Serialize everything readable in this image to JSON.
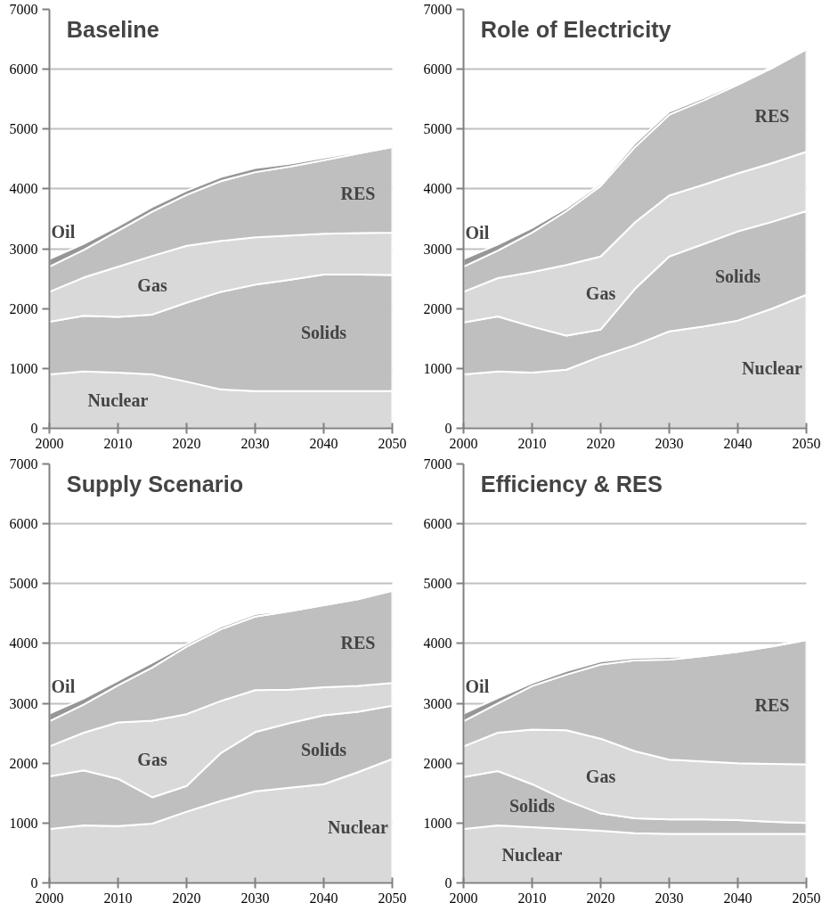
{
  "chart_data": [
    {
      "type": "area",
      "stacked": true,
      "title": "Baseline",
      "x": [
        2000,
        2005,
        2010,
        2015,
        2020,
        2025,
        2030,
        2035,
        2040,
        2045,
        2050
      ],
      "xlim": [
        2000,
        2050
      ],
      "xticks": [
        2000,
        2010,
        2020,
        2030,
        2040,
        2050
      ],
      "ylim": [
        0,
        7000
      ],
      "yticks": [
        0,
        1000,
        2000,
        3000,
        4000,
        5000,
        6000,
        7000
      ],
      "grid": "y",
      "series": [
        {
          "name": "Nuclear",
          "color": "#d9d9d9",
          "values": [
            900,
            950,
            930,
            900,
            780,
            650,
            620,
            620,
            620,
            620,
            620
          ]
        },
        {
          "name": "Solids",
          "color": "#bfbfbf",
          "values": [
            880,
            930,
            930,
            1000,
            1320,
            1630,
            1780,
            1860,
            1950,
            1950,
            1940
          ]
        },
        {
          "name": "Gas",
          "color": "#d9d9d9",
          "values": [
            500,
            640,
            840,
            980,
            950,
            850,
            790,
            740,
            680,
            690,
            710
          ]
        },
        {
          "name": "RES",
          "color": "#bfbfbf",
          "values": [
            420,
            460,
            600,
            740,
            850,
            1000,
            1090,
            1150,
            1230,
            1330,
            1430
          ]
        },
        {
          "name": "Oil",
          "color": "#969696",
          "values": [
            130,
            100,
            80,
            80,
            70,
            70,
            70,
            50,
            40,
            30,
            30
          ]
        }
      ]
    },
    {
      "type": "area",
      "stacked": true,
      "title": "Role of Electricity",
      "x": [
        2000,
        2005,
        2010,
        2015,
        2020,
        2025,
        2030,
        2035,
        2040,
        2045,
        2050
      ],
      "xlim": [
        2000,
        2050
      ],
      "xticks": [
        2000,
        2010,
        2020,
        2030,
        2040,
        2050
      ],
      "ylim": [
        0,
        7000
      ],
      "yticks": [
        0,
        1000,
        2000,
        3000,
        4000,
        5000,
        6000,
        7000
      ],
      "grid": "y",
      "series": [
        {
          "name": "Nuclear",
          "color": "#d9d9d9",
          "values": [
            900,
            950,
            930,
            980,
            1200,
            1390,
            1620,
            1700,
            1800,
            2000,
            2230
          ]
        },
        {
          "name": "Solids",
          "color": "#bfbfbf",
          "values": [
            870,
            920,
            770,
            570,
            450,
            940,
            1250,
            1380,
            1490,
            1450,
            1400
          ]
        },
        {
          "name": "Gas",
          "color": "#d9d9d9",
          "values": [
            510,
            640,
            910,
            1180,
            1220,
            1110,
            1020,
            990,
            970,
            980,
            990
          ]
        },
        {
          "name": "RES",
          "color": "#bfbfbf",
          "values": [
            420,
            460,
            660,
            900,
            1180,
            1260,
            1350,
            1410,
            1480,
            1590,
            1710
          ]
        },
        {
          "name": "Oil",
          "color": "#969696",
          "values": [
            130,
            100,
            80,
            50,
            40,
            60,
            50,
            40,
            30,
            20,
            30
          ]
        }
      ]
    },
    {
      "type": "area",
      "stacked": true,
      "title": "Supply Scenario",
      "x": [
        2000,
        2005,
        2010,
        2015,
        2020,
        2025,
        2030,
        2035,
        2040,
        2045,
        2050
      ],
      "xlim": [
        2000,
        2050
      ],
      "xticks": [
        2000,
        2010,
        2020,
        2030,
        2040,
        2050
      ],
      "ylim": [
        0,
        7000
      ],
      "yticks": [
        0,
        1000,
        2000,
        3000,
        4000,
        5000,
        6000,
        7000
      ],
      "grid": "y",
      "series": [
        {
          "name": "Nuclear",
          "color": "#d9d9d9",
          "values": [
            900,
            960,
            950,
            990,
            1190,
            1370,
            1530,
            1590,
            1650,
            1850,
            2070
          ]
        },
        {
          "name": "Solids",
          "color": "#bfbfbf",
          "values": [
            880,
            920,
            790,
            440,
            430,
            800,
            990,
            1080,
            1150,
            1010,
            890
          ]
        },
        {
          "name": "Gas",
          "color": "#d9d9d9",
          "values": [
            500,
            630,
            940,
            1280,
            1200,
            870,
            700,
            560,
            470,
            430,
            380
          ]
        },
        {
          "name": "RES",
          "color": "#bfbfbf",
          "values": [
            420,
            470,
            620,
            890,
            1130,
            1200,
            1230,
            1310,
            1370,
            1450,
            1540
          ]
        },
        {
          "name": "Oil",
          "color": "#969696",
          "values": [
            130,
            100,
            80,
            80,
            40,
            40,
            40,
            20,
            20,
            20,
            20
          ]
        }
      ]
    },
    {
      "type": "area",
      "stacked": true,
      "title": "Efficiency & RES",
      "x": [
        2000,
        2005,
        2010,
        2015,
        2020,
        2025,
        2030,
        2035,
        2040,
        2045,
        2050
      ],
      "xlim": [
        2000,
        2050
      ],
      "xticks": [
        2000,
        2010,
        2020,
        2030,
        2040,
        2050
      ],
      "ylim": [
        0,
        7000
      ],
      "yticks": [
        0,
        1000,
        2000,
        3000,
        4000,
        5000,
        6000,
        7000
      ],
      "grid": "y",
      "series": [
        {
          "name": "Nuclear",
          "color": "#d9d9d9",
          "values": [
            900,
            960,
            930,
            900,
            870,
            830,
            820,
            820,
            820,
            820,
            820
          ]
        },
        {
          "name": "Solids",
          "color": "#bfbfbf",
          "values": [
            870,
            910,
            720,
            480,
            290,
            250,
            240,
            240,
            230,
            200,
            180
          ]
        },
        {
          "name": "Gas",
          "color": "#d9d9d9",
          "values": [
            510,
            640,
            910,
            1170,
            1250,
            1120,
            1000,
            970,
            950,
            970,
            980
          ]
        },
        {
          "name": "RES",
          "color": "#bfbfbf",
          "values": [
            420,
            490,
            730,
            930,
            1240,
            1520,
            1670,
            1760,
            1860,
            1960,
            2080
          ]
        },
        {
          "name": "Oil",
          "color": "#969696",
          "values": [
            130,
            90,
            50,
            60,
            50,
            40,
            40,
            20,
            10,
            10,
            10
          ]
        }
      ]
    }
  ]
}
